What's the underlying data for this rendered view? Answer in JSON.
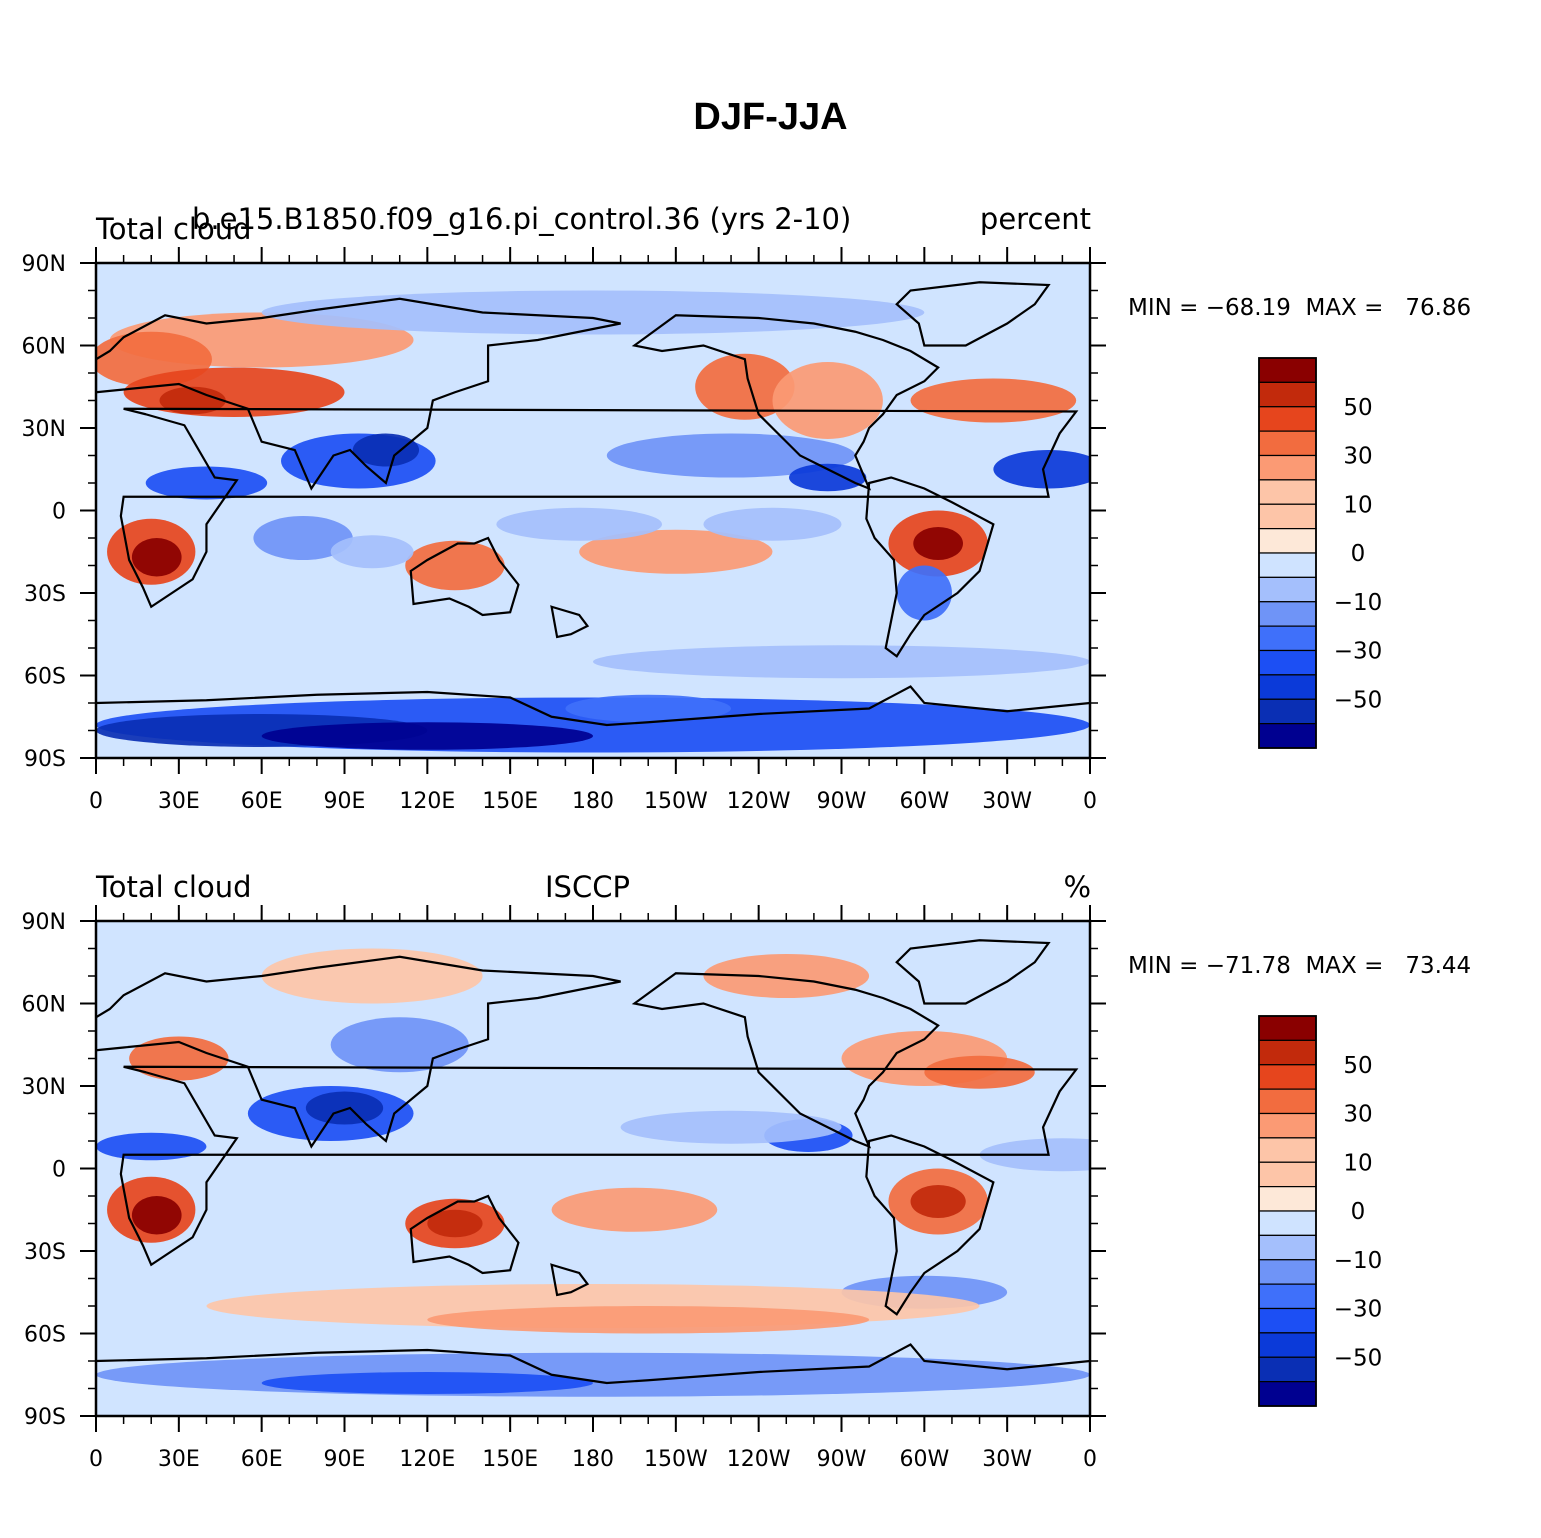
{
  "title": "DJF-JJA",
  "palette": {
    "ocean_base": "#d0e4ff",
    "land_outline": "#000000",
    "levels": [
      "#000090",
      "#0a2fb4",
      "#0b3ad9",
      "#1c4ff4",
      "#3f70fa",
      "#6f94f7",
      "#a4bffc",
      "#cfe3ff",
      "#fde8d8",
      "#fdc5a8",
      "#fb9a74",
      "#f26c3f",
      "#e6451d",
      "#c22a0c",
      "#8a0000"
    ]
  },
  "panels": [
    {
      "left_label": "Total cloud",
      "center_label": "b.e15.B1850.f09_g16.pi_control.36 (yrs 2-10)",
      "right_label": "percent",
      "min_max_label": "MIN = −68.19  MAX =   76.86",
      "colorbar_labels": [
        "50",
        "30",
        "10",
        "0",
        "−10",
        "−30",
        "−50"
      ],
      "y_ticks": [
        "90N",
        "60N",
        "30N",
        "0",
        "30S",
        "60S",
        "90S"
      ],
      "x_ticks": [
        "0",
        "30E",
        "60E",
        "90E",
        "120E",
        "150E",
        "180",
        "150W",
        "120W",
        "90W",
        "60W",
        "30W",
        "0"
      ]
    },
    {
      "left_label": "Total cloud",
      "center_label": "ISCCP",
      "right_label": "%",
      "min_max_label": "MIN = −71.78  MAX =   73.44",
      "colorbar_labels": [
        "50",
        "30",
        "10",
        "0",
        "−10",
        "−30",
        "−50"
      ],
      "y_ticks": [
        "90N",
        "60N",
        "30N",
        "0",
        "30S",
        "60S",
        "90S"
      ],
      "x_ticks": [
        "0",
        "30E",
        "60E",
        "90E",
        "120E",
        "150E",
        "180",
        "150W",
        "120W",
        "90W",
        "60W",
        "30W",
        "0"
      ]
    }
  ]
}
